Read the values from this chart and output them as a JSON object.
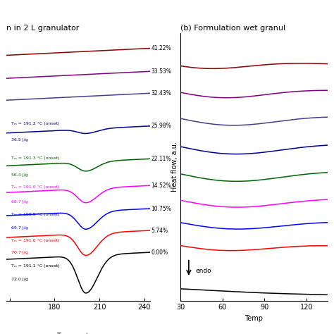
{
  "title_left": "n in 2 L granulator",
  "title_right": "(b) Formulation wet granul",
  "labels": [
    "41.22%",
    "33.53%",
    "32.43%",
    "25.98%",
    "22.11%",
    "14.52%",
    "10.75%",
    "5.74%",
    "0.00%"
  ],
  "colors_left": [
    "#8B0000",
    "#800080",
    "#483D8B",
    "#00008B",
    "#006400",
    "#FF00FF",
    "#0000FF",
    "#FF0000",
    "#000000"
  ],
  "colors_right": [
    "#8B0000",
    "#800080",
    "#483D8B",
    "#00008B",
    "#006400",
    "#FF00FF",
    "#0000FF",
    "#FF0000",
    "#000000"
  ],
  "background": "#ffffff",
  "xlim_left": [
    148,
    244
  ],
  "xlim_right": [
    30,
    135
  ],
  "ylim_left": [
    -1.8,
    9.2
  ],
  "ylim_right": [
    -0.3,
    9.5
  ],
  "xticks_left": [
    150,
    180,
    210,
    240
  ],
  "xtick_labels_left": [
    "",
    "180",
    "210",
    "240"
  ],
  "xticks_right": [
    30,
    60,
    90,
    120
  ],
  "xtick_labels_right": [
    "30",
    "60",
    "90",
    "120"
  ],
  "offsets_left": [
    8.3,
    7.35,
    6.45,
    5.1,
    3.75,
    2.65,
    1.7,
    0.8,
    -0.1
  ],
  "peak_depths_left": [
    0.0,
    0.0,
    0.0,
    0.18,
    0.38,
    0.58,
    0.72,
    0.9,
    1.55
  ],
  "offsets_right": [
    8.6,
    7.65,
    6.7,
    5.7,
    4.7,
    3.7,
    2.85,
    1.95,
    0.15
  ],
  "dip_depths_right": [
    0.35,
    0.45,
    0.5,
    0.55,
    0.55,
    0.5,
    0.45,
    0.35,
    0.05
  ],
  "dip_pos_right": [
    48,
    58,
    63,
    65,
    65,
    65,
    65,
    60,
    90
  ],
  "dip_width_right": [
    30,
    33,
    35,
    37,
    37,
    37,
    37,
    33,
    40
  ]
}
